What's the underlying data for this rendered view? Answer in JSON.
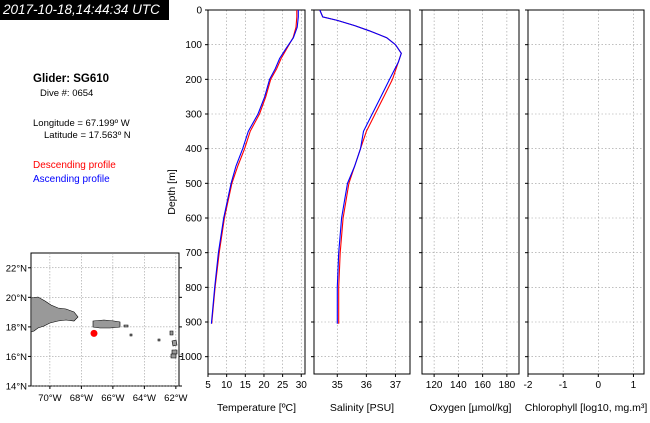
{
  "header": {
    "timestamp": "2017-10-18,14:44:34 UTC",
    "glider_title": "Glider: SG610",
    "dive_line": "Dive #: 0654",
    "longitude_line": "Longitude = 67.199º W",
    "latitude_line": "Latitude = 17.563º N",
    "descending_label": "Descending profile",
    "ascending_label": "Ascending profile"
  },
  "colors": {
    "descending": "#ff0000",
    "ascending": "#0000ff",
    "land": "#999999",
    "glider_marker": "#ff0000"
  },
  "map": {
    "lat_labels": [
      "22°N",
      "20°N",
      "18°N",
      "16°N",
      "14°N"
    ],
    "lat_values": [
      22,
      20,
      18,
      16,
      14
    ],
    "lon_labels": [
      "70°W",
      "68°W",
      "66°W",
      "64°W",
      "62°W"
    ],
    "lon_values": [
      -70,
      -68,
      -66,
      -64,
      -62
    ],
    "glider_position": {
      "lon": -67.199,
      "lat": 17.563
    }
  },
  "chart_data": [
    {
      "type": "line",
      "xlabel": "Temperature [ºC]",
      "ylabel": "Depth [m]",
      "xlim": [
        5,
        31
      ],
      "xticks": [
        5,
        10,
        15,
        20,
        25,
        30
      ],
      "ylim": [
        1050,
        0
      ],
      "yticks": [
        0,
        100,
        200,
        300,
        400,
        500,
        600,
        700,
        800,
        900,
        1000
      ],
      "series": [
        {
          "depth": [
            0,
            20,
            50,
            80,
            110,
            140,
            170,
            200,
            250,
            300,
            350,
            400,
            450,
            500,
            600,
            700,
            800,
            905
          ],
          "values": [
            28.8,
            28.8,
            28.6,
            27.8,
            26.2,
            24.6,
            23.4,
            21.8,
            20.5,
            18.8,
            16.3,
            14.8,
            13.0,
            11.4,
            9.4,
            8.0,
            6.9,
            6.0
          ]
        },
        {
          "depth": [
            0,
            20,
            50,
            80,
            110,
            140,
            170,
            200,
            250,
            300,
            350,
            400,
            450,
            500,
            600,
            700,
            800,
            905
          ],
          "values": [
            29.2,
            29.2,
            28.9,
            27.9,
            26.0,
            24.2,
            23.0,
            21.5,
            20.2,
            18.4,
            15.8,
            14.3,
            12.5,
            11.2,
            9.2,
            7.8,
            6.8,
            5.9
          ]
        }
      ]
    },
    {
      "type": "line",
      "xlabel": "Salinity [PSU]",
      "ylabel": "",
      "xlim": [
        34.2,
        37.5
      ],
      "xticks": [
        35,
        36,
        37
      ],
      "xtick_labels": [
        "35",
        "36",
        "37"
      ],
      "ylim": [
        1050,
        0
      ],
      "series": [
        {
          "depth": [
            0,
            20,
            30,
            45,
            60,
            80,
            100,
            125,
            150,
            200,
            250,
            300,
            350,
            400,
            450,
            500,
            550,
            600,
            700,
            800,
            905
          ],
          "values": [
            34.4,
            34.5,
            35.0,
            35.6,
            36.1,
            36.7,
            37.0,
            37.2,
            37.1,
            36.9,
            36.6,
            36.3,
            36.0,
            35.8,
            35.6,
            35.4,
            35.3,
            35.2,
            35.1,
            35.05,
            35.05
          ]
        },
        {
          "depth": [
            0,
            20,
            30,
            45,
            60,
            80,
            100,
            125,
            150,
            200,
            250,
            300,
            350,
            400,
            450,
            500,
            550,
            600,
            700,
            800,
            905
          ],
          "values": [
            34.4,
            34.5,
            35.0,
            35.6,
            36.1,
            36.7,
            37.0,
            37.2,
            37.1,
            36.8,
            36.5,
            36.2,
            35.9,
            35.8,
            35.6,
            35.35,
            35.25,
            35.15,
            35.05,
            35.0,
            35.0
          ]
        }
      ]
    },
    {
      "type": "line",
      "xlabel": "Oxygen [µmol/kg]",
      "ylabel": "",
      "xlim": [
        110,
        190
      ],
      "xticks": [
        120,
        140,
        160,
        180
      ],
      "ylim": [
        1050,
        0
      ],
      "series": []
    },
    {
      "type": "line",
      "xlabel": "Chlorophyll [log10, mg.m³]",
      "ylabel": "",
      "xlim": [
        -2,
        1.3
      ],
      "xticks": [
        -2,
        -1,
        0,
        1
      ],
      "ylim": [
        1050,
        0
      ],
      "series": []
    }
  ]
}
